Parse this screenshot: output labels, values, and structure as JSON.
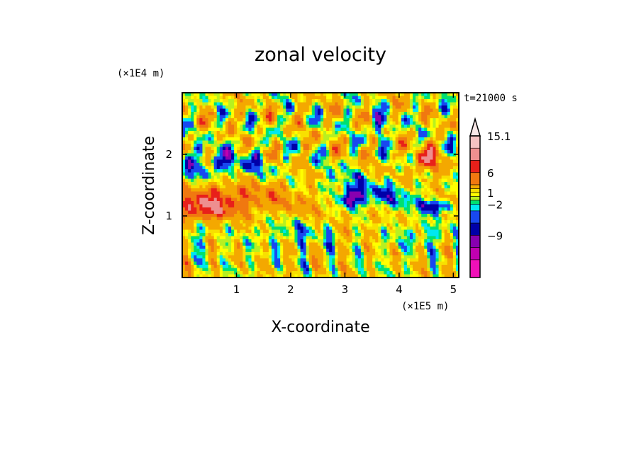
{
  "chart_data": {
    "type": "heatmap",
    "title": "zonal velocity",
    "xlabel": "X-coordinate",
    "ylabel": "Z-coordinate",
    "x_unit": "(×1E5 m)",
    "y_unit": "(×1E4 m)",
    "time_label": "t=21000 s",
    "xlim": [
      0.0,
      5.1
    ],
    "ylim": [
      0.0,
      3.0
    ],
    "x_ticks": [
      "1",
      "2",
      "3",
      "4",
      "5"
    ],
    "x_tick_values": [
      1,
      2,
      3,
      4,
      5
    ],
    "y_ticks": [
      "1",
      "2"
    ],
    "y_tick_values": [
      1,
      2
    ],
    "colorbar": {
      "labels": [
        "15.1",
        "6",
        "1",
        "−2",
        "−9"
      ],
      "label_values": [
        15.1,
        6,
        1,
        -2,
        -9
      ],
      "levels": [
        {
          "value": 15.1,
          "color": "#f4c2c2"
        },
        {
          "value": 12,
          "color": "#ee8f8f"
        },
        {
          "value": 9,
          "color": "#e8201a"
        },
        {
          "value": 6,
          "color": "#f07810"
        },
        {
          "value": 3,
          "color": "#f4a800"
        },
        {
          "value": 2,
          "color": "#f8e000"
        },
        {
          "value": 1,
          "color": "#ffff00"
        },
        {
          "value": 0,
          "color": "#b8f020"
        },
        {
          "value": -1,
          "color": "#00e070"
        },
        {
          "value": -2,
          "color": "#00e8f0"
        },
        {
          "value": -4,
          "color": "#1848f0"
        },
        {
          "value": -6,
          "color": "#0000a8"
        },
        {
          "value": -9,
          "color": "#8800b0"
        },
        {
          "value": -12,
          "color": "#c000b0"
        },
        {
          "value": -15,
          "color": "#f010b8"
        }
      ]
    }
  }
}
